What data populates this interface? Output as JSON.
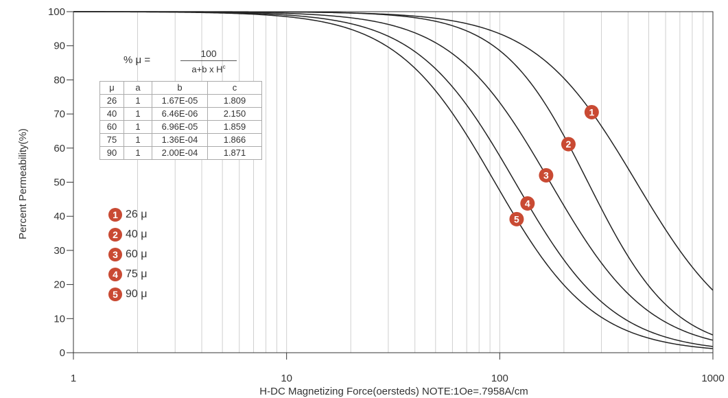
{
  "chart_data": {
    "type": "line",
    "xlabel": "H-DC Magnetizing Force(oersteds) NOTE:1Oe=.7958A/cm",
    "ylabel": "Percent Permeability(%)",
    "xscale": "log",
    "xlim": [
      1,
      1000
    ],
    "ylim": [
      0,
      100
    ],
    "xticks": [
      "1",
      "10",
      "100",
      "1000"
    ],
    "yticks": [
      "0",
      "10",
      "20",
      "30",
      "40",
      "50",
      "60",
      "70",
      "80",
      "90",
      "100"
    ],
    "grid": true,
    "formula": {
      "lhs": "% μ =",
      "numerator": "100",
      "denominator": "a+b x H",
      "exponent": "c"
    },
    "coefficients": {
      "headers": [
        "μ",
        "a",
        "b",
        "c"
      ],
      "rows": [
        [
          "26",
          "1",
          "1.67E-05",
          "1.809"
        ],
        [
          "40",
          "1",
          "6.46E-06",
          "2.150"
        ],
        [
          "60",
          "1",
          "6.96E-05",
          "1.859"
        ],
        [
          "75",
          "1",
          "1.36E-04",
          "1.866"
        ],
        [
          "90",
          "1",
          "2.00E-04",
          "1.871"
        ]
      ]
    },
    "series": [
      {
        "marker": "1",
        "name": "26 μ",
        "a": 1,
        "b": 1.67e-05,
        "c": 1.809,
        "marker_x": 270
      },
      {
        "marker": "2",
        "name": "40 μ",
        "a": 1,
        "b": 6.46e-06,
        "c": 2.15,
        "marker_x": 210
      },
      {
        "marker": "3",
        "name": "60 μ",
        "a": 1,
        "b": 6.96e-05,
        "c": 1.859,
        "marker_x": 165
      },
      {
        "marker": "4",
        "name": "75 μ",
        "a": 1,
        "b": 0.000136,
        "c": 1.866,
        "marker_x": 135
      },
      {
        "marker": "5",
        "name": "90 μ",
        "a": 1,
        "b": 0.0002,
        "c": 1.871,
        "marker_x": 120
      }
    ],
    "colors": {
      "curve": "#222222",
      "marker": "#c94a33",
      "grid": "#cfcfcf",
      "axis": "#333333"
    }
  }
}
